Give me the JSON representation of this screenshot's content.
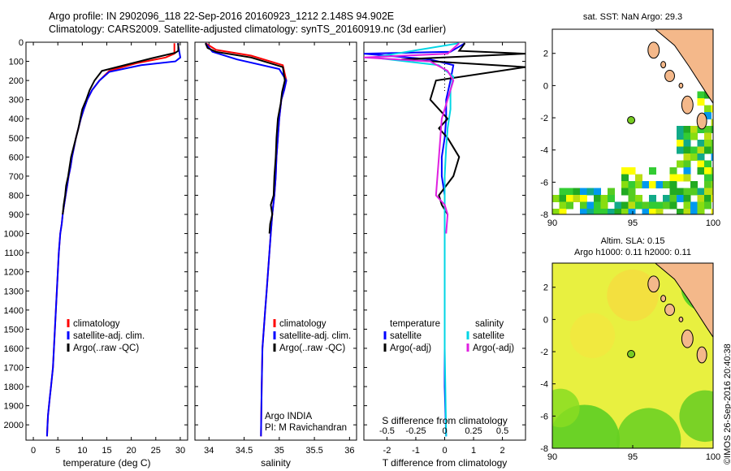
{
  "header": {
    "line1": "Argo profile: IN 2902096_118 22-Sep-2016 20160923_1212 2.148S 94.902E",
    "line2": "Climatology: CARS2009. Satellite-adjusted climatology: synTS_20160919.nc (3d earlier)"
  },
  "credit": "©IMOS 26-Sep-2016 20:40:38",
  "colors": {
    "climatology": "#ff0000",
    "satellite": "#0000ff",
    "argo": "#000000",
    "sat_salinity": "#00d5e5",
    "argo_adj_salinity": "#e020e0",
    "land": "#f4b88a"
  },
  "chart_data": [
    {
      "type": "line",
      "xlabel": "temperature (deg C)",
      "xlim": [
        -1.5,
        31.5
      ],
      "ylim": [
        2080,
        0
      ],
      "xticks": [
        0,
        5,
        10,
        15,
        20,
        25,
        30
      ],
      "yticks": [
        0,
        100,
        200,
        300,
        400,
        500,
        600,
        700,
        800,
        900,
        1000,
        1100,
        1200,
        1300,
        1400,
        1500,
        1600,
        1700,
        1800,
        1900,
        2000
      ],
      "legend": [
        "climatology",
        "satellite-adj. clim.",
        "Argo(..raw -QC)"
      ],
      "legend_position": "bottom-center",
      "series": [
        {
          "name": "climatology",
          "color_key": "climatology",
          "x": [
            28.8,
            28.8,
            27,
            21,
            15.5,
            13.5,
            12,
            11,
            10.3,
            9.7,
            9.2,
            8.7,
            8.3,
            7.9,
            7.6,
            7.2,
            6.9,
            6.6,
            6.3,
            6.0,
            5.8,
            5.5,
            5.2,
            5.0,
            4.8,
            4.6,
            4.4,
            4.2,
            4.0,
            3.8,
            3.6,
            3.4,
            3.2,
            3.0,
            2.9,
            2.8
          ],
          "y": [
            5,
            60,
            80,
            110,
            150,
            200,
            250,
            300,
            350,
            400,
            450,
            500,
            550,
            600,
            650,
            700,
            750,
            800,
            850,
            900,
            950,
            1000,
            1100,
            1200,
            1300,
            1400,
            1500,
            1600,
            1700,
            1750,
            1800,
            1850,
            1900,
            1950,
            2000,
            2060
          ]
        },
        {
          "name": "satellite-adj. clim.",
          "color_key": "satellite",
          "x": [
            29.5,
            30,
            29,
            22,
            15.5,
            13.5,
            12,
            11,
            10.3,
            9.7,
            9.2,
            8.7,
            8.3,
            7.9,
            7.6,
            7.2,
            6.9,
            6.6,
            6.3,
            6.0,
            5.8,
            5.5,
            5.2,
            5.0,
            4.8,
            4.6,
            4.4,
            4.2,
            4.0,
            3.8,
            3.6,
            3.4,
            3.2,
            3.0,
            2.9,
            2.8
          ],
          "y": [
            5,
            80,
            100,
            120,
            155,
            200,
            250,
            300,
            350,
            400,
            450,
            500,
            550,
            600,
            650,
            700,
            750,
            800,
            850,
            900,
            950,
            1000,
            1100,
            1200,
            1300,
            1400,
            1500,
            1600,
            1700,
            1750,
            1800,
            1850,
            1900,
            1950,
            2000,
            2060
          ]
        },
        {
          "name": "Argo(..raw -QC)",
          "color_key": "argo",
          "x": [
            29.6,
            29.6,
            29,
            24,
            14,
            12.5,
            11.5,
            10.8,
            10,
            9.6,
            9.2,
            8.7,
            8.2,
            7.7,
            7.4,
            7.1,
            6.7,
            6.5,
            6.2,
            6.0
          ],
          "y": [
            5,
            45,
            55,
            85,
            150,
            200,
            250,
            300,
            350,
            400,
            450,
            500,
            550,
            600,
            650,
            700,
            750,
            800,
            850,
            900
          ]
        }
      ]
    },
    {
      "type": "line",
      "xlabel": "salinity",
      "xlim": [
        33.8,
        36.1
      ],
      "ylim": [
        2080,
        0
      ],
      "xticks": [
        34,
        34.5,
        35,
        35.5,
        36
      ],
      "legend": [
        "climatology",
        "satellite-adj. clim.",
        "Argo(..raw -QC)"
      ],
      "legend_position": "bottom-center",
      "annotation": [
        "Argo INDIA",
        "PI: M Ravichandran"
      ],
      "series": [
        {
          "name": "climatology",
          "color_key": "climatology",
          "x": [
            33.95,
            34.1,
            34.6,
            35.05,
            35.1,
            35.07,
            35.03,
            35.0,
            34.98,
            34.96,
            34.95,
            34.93,
            34.9,
            34.88,
            34.86,
            34.84,
            34.82,
            34.8,
            34.78,
            34.76,
            34.75,
            34.74
          ],
          "y": [
            5,
            40,
            70,
            120,
            200,
            250,
            300,
            400,
            500,
            600,
            700,
            800,
            900,
            1000,
            1100,
            1200,
            1300,
            1400,
            1500,
            1600,
            1800,
            2060
          ]
        },
        {
          "name": "satellite-adj. clim.",
          "color_key": "satellite",
          "x": [
            33.95,
            34.05,
            34.4,
            35.0,
            35.1,
            35.07,
            35.03,
            35.0,
            34.98,
            34.96,
            34.95,
            34.93,
            34.9,
            34.88,
            34.86,
            34.84,
            34.82,
            34.8,
            34.78,
            34.76,
            34.75,
            34.74
          ],
          "y": [
            5,
            50,
            90,
            140,
            200,
            250,
            300,
            400,
            500,
            600,
            700,
            800,
            900,
            1000,
            1100,
            1200,
            1300,
            1400,
            1500,
            1600,
            1800,
            2060
          ]
        },
        {
          "name": "Argo(..raw -QC)",
          "color_key": "argo",
          "x": [
            33.95,
            33.98,
            34.1,
            34.6,
            35.05,
            35.08,
            35.04,
            35.02,
            34.98,
            34.96,
            34.95,
            34.93,
            34.92,
            34.88,
            34.9,
            34.87,
            34.86
          ],
          "y": [
            5,
            30,
            50,
            80,
            130,
            200,
            260,
            320,
            400,
            500,
            600,
            700,
            800,
            850,
            900,
            950,
            1000
          ]
        }
      ]
    },
    {
      "type": "line",
      "xlabel": "T difference from climatology",
      "xlabel_top": "S difference from climatology",
      "xlim": [
        -2.8,
        2.8
      ],
      "ylim": [
        2080,
        0
      ],
      "xticks_bottom": [
        -2,
        -1,
        0,
        1,
        2
      ],
      "xticks_top": [
        "-0.5",
        "-0.25",
        "0",
        "0.25",
        "0.5"
      ],
      "legend_temperature": [
        "temperature",
        "satellite",
        "Argo(-adj)"
      ],
      "legend_salinity": [
        "salinity",
        "satellite",
        "Argo(-adj)"
      ],
      "legend_position": "bottom",
      "series": [
        {
          "name": "satellite",
          "color_key": "satellite",
          "quantity": "temperature",
          "x": [
            0.7,
            0.2,
            -2.8,
            -0.5,
            0.3,
            0.2,
            0.05,
            0.05,
            0,
            -0.1,
            -0.1,
            0,
            0,
            0,
            0,
            0,
            0,
            0.05
          ],
          "y": [
            5,
            50,
            60,
            90,
            120,
            200,
            300,
            400,
            500,
            600,
            700,
            800,
            900,
            1000,
            1200,
            1500,
            1800,
            2060
          ]
        },
        {
          "name": "Argo(-adj)",
          "color_key": "argo",
          "quantity": "temperature",
          "x": [
            0.7,
            0.5,
            2.8,
            -1.5,
            2.8,
            -0.3,
            -0.5,
            0.1,
            -0.2,
            0.1,
            0.5,
            0.3,
            -0.2,
            -0.1,
            0.1
          ],
          "y": [
            5,
            45,
            60,
            90,
            130,
            200,
            300,
            400,
            450,
            500,
            600,
            700,
            800,
            850,
            900
          ]
        },
        {
          "name": "satellite",
          "color_key": "sat_salinity",
          "quantity": "salinity",
          "x": [
            0.5,
            -2.5,
            -0.2,
            0.3,
            0.2,
            0.2,
            0.1,
            0.05,
            0,
            0,
            0,
            0,
            0.05
          ],
          "y": [
            5,
            80,
            120,
            180,
            250,
            350,
            450,
            550,
            700,
            900,
            1200,
            1600,
            2060
          ]
        },
        {
          "name": "Argo(-adj)",
          "color_key": "argo_adj_salinity",
          "quantity": "salinity",
          "x": [
            0.5,
            0.1,
            -2.8,
            -0.5,
            0.1,
            0.3,
            -0.1,
            -0.2,
            -0.3,
            0,
            0.1,
            0.05
          ],
          "y": [
            5,
            60,
            80,
            100,
            150,
            200,
            400,
            600,
            800,
            850,
            900,
            1000
          ]
        }
      ]
    },
    {
      "type": "heatmap",
      "title": "sat. SST: NaN Argo: 29.3",
      "xlim": [
        90,
        100
      ],
      "ylim": [
        -8,
        3.5
      ],
      "xticks": [
        90,
        95,
        100
      ],
      "yticks": [
        -8,
        -6,
        -4,
        -2,
        0,
        2
      ],
      "marker": {
        "x": 94.902,
        "y": -2.148
      }
    },
    {
      "type": "heatmap",
      "title": "Altim. SLA: 0.15",
      "subtitle": "Argo h1000: 0.11 h2000: 0.11",
      "xlim": [
        90,
        100
      ],
      "ylim": [
        -8,
        3.5
      ],
      "xticks": [
        90,
        95,
        100
      ],
      "yticks": [
        -8,
        -6,
        -4,
        -2,
        0,
        2
      ],
      "marker": {
        "x": 94.902,
        "y": -2.148
      }
    }
  ]
}
